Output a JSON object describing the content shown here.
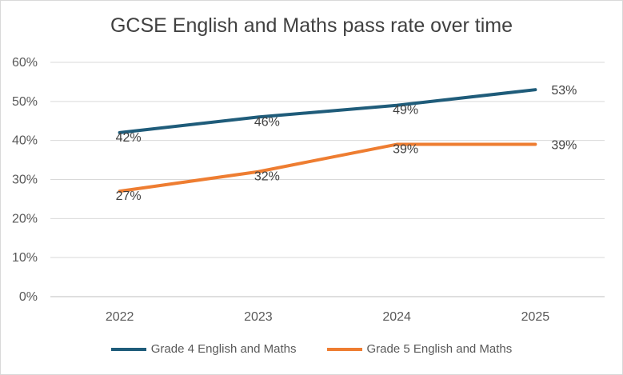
{
  "chart_data": {
    "type": "line",
    "title": "GCSE English and Maths pass rate over time",
    "xlabel": "",
    "ylabel": "",
    "categories": [
      "2022",
      "2023",
      "2024",
      "2025"
    ],
    "y_ticks": [
      "0%",
      "10%",
      "20%",
      "30%",
      "40%",
      "50%",
      "60%"
    ],
    "ylim": [
      0,
      60
    ],
    "grid": true,
    "legend_position": "bottom",
    "series": [
      {
        "name": "Grade 4 English and Maths",
        "values": [
          42,
          46,
          49,
          53
        ],
        "labels": [
          "42%",
          "46%",
          "49%",
          "53%"
        ],
        "color": "#1f5c7a"
      },
      {
        "name": "Grade 5 English and Maths",
        "values": [
          27,
          32,
          39,
          39
        ],
        "labels": [
          "27%",
          "32%",
          "39%",
          "39%"
        ],
        "color": "#ee7d31"
      }
    ]
  }
}
